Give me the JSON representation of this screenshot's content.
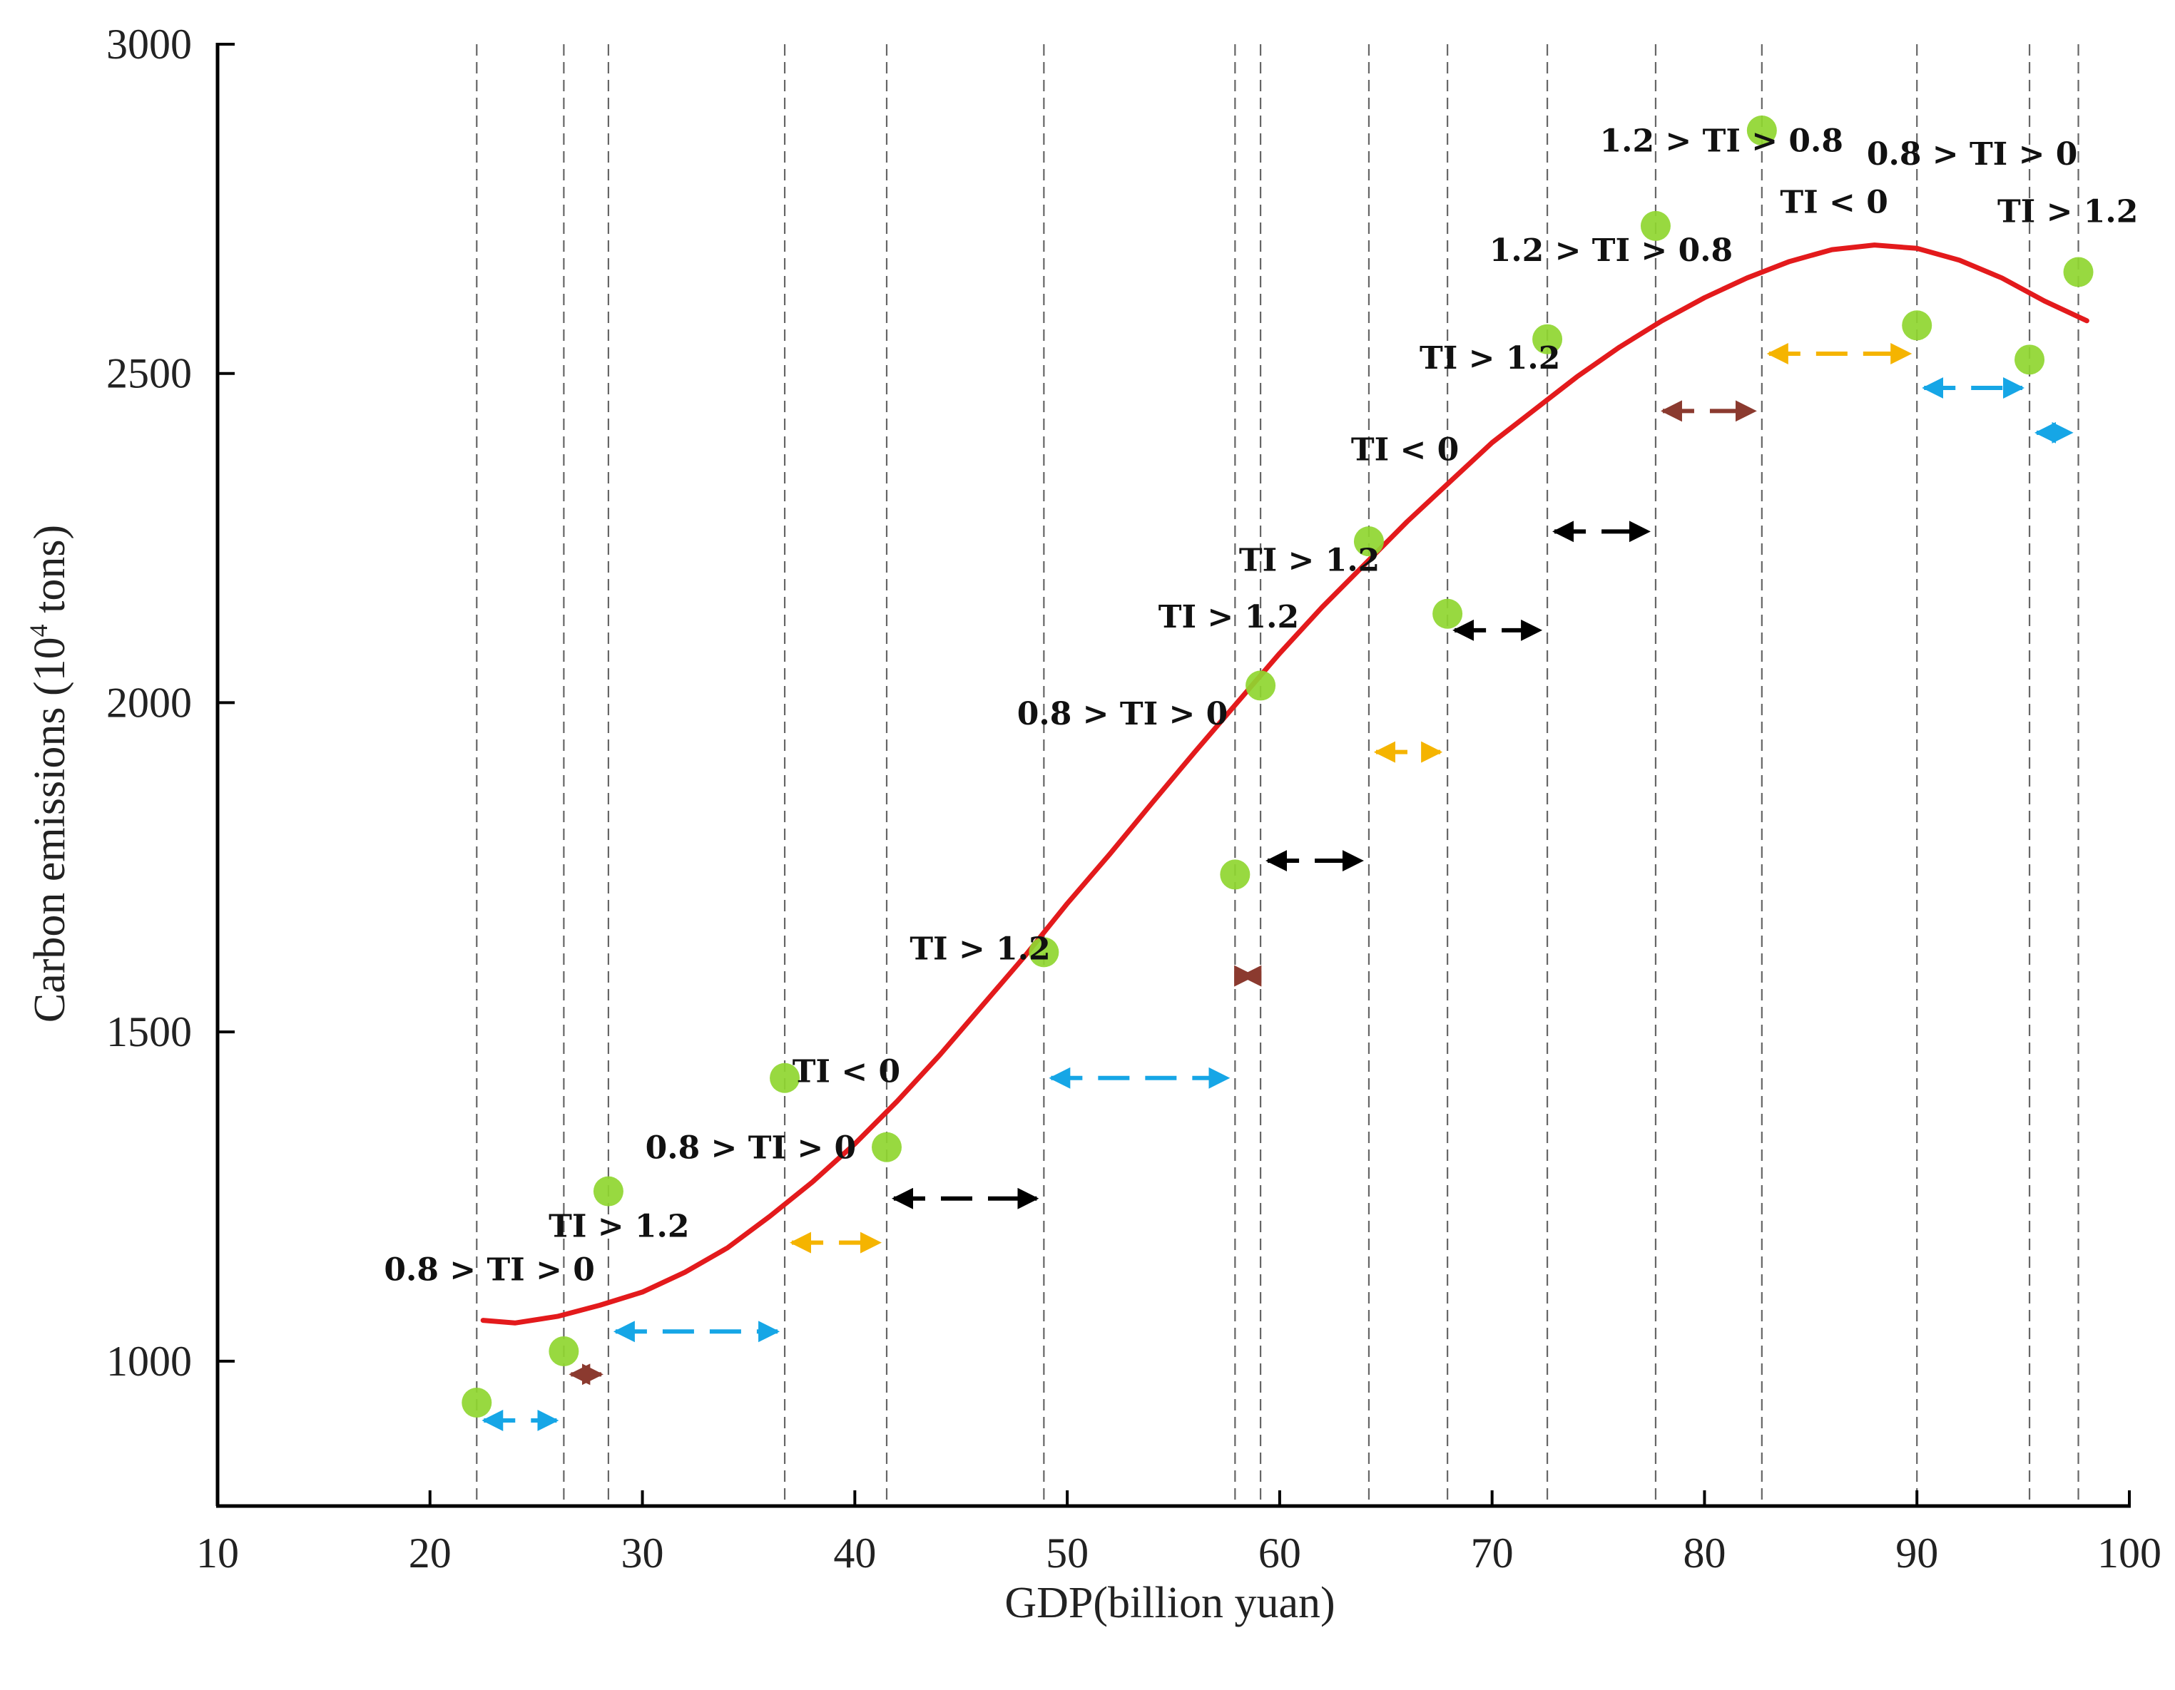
{
  "chart_data": {
    "type": "scatter",
    "title": "",
    "xlabel": "GDP(billion yuan)",
    "ylabel": "Carbon emissions (10",
    "ylabel_sup": "4",
    "ylabel_tail": " tons)",
    "xlim": [
      10,
      100
    ],
    "ylim": [
      780,
      3000
    ],
    "xticks": [
      10,
      20,
      30,
      40,
      50,
      60,
      70,
      80,
      90,
      100
    ],
    "xtick_labels": [
      "10",
      "20",
      "30",
      "40",
      "50",
      "60",
      "70",
      "80",
      "90",
      "100"
    ],
    "yticks": [
      1000,
      1500,
      2000,
      2500,
      3000
    ],
    "ytick_labels": [
      "1000",
      "1500",
      "2000",
      "2500",
      "3000"
    ],
    "colors": {
      "axis": "#000000",
      "curve": "#e31a1c",
      "point": "#8fd630",
      "guide": "#666666",
      "blue": "#16a6e6",
      "orange": "#f5b400",
      "black": "#000000",
      "brown": "#8b3a2f"
    },
    "points": [
      {
        "x": 22.2,
        "y": 937
      },
      {
        "x": 26.3,
        "y": 1015
      },
      {
        "x": 28.4,
        "y": 1258
      },
      {
        "x": 36.7,
        "y": 1430
      },
      {
        "x": 41.5,
        "y": 1325
      },
      {
        "x": 48.9,
        "y": 1621
      },
      {
        "x": 57.9,
        "y": 1739
      },
      {
        "x": 59.1,
        "y": 2026
      },
      {
        "x": 64.2,
        "y": 2245
      },
      {
        "x": 67.9,
        "y": 2135
      },
      {
        "x": 72.6,
        "y": 2552
      },
      {
        "x": 77.7,
        "y": 2724
      },
      {
        "x": 82.7,
        "y": 2869
      },
      {
        "x": 90.0,
        "y": 2573
      },
      {
        "x": 95.3,
        "y": 2521
      },
      {
        "x": 97.6,
        "y": 2654
      }
    ],
    "fitted_curve": {
      "name": "fitted curve",
      "x": [
        22.5,
        24,
        26,
        28,
        30,
        32,
        34,
        36,
        38,
        40,
        42,
        44,
        46,
        48,
        50,
        52,
        54,
        56,
        58,
        60,
        62,
        64,
        66,
        68,
        70,
        72,
        74,
        76,
        78,
        80,
        82,
        84,
        86,
        88,
        90,
        92,
        94,
        96,
        98
      ],
      "y": [
        1062,
        1058,
        1068,
        1085,
        1105,
        1135,
        1172,
        1220,
        1272,
        1330,
        1395,
        1465,
        1540,
        1615,
        1695,
        1770,
        1848,
        1925,
        2000,
        2075,
        2145,
        2210,
        2275,
        2335,
        2395,
        2445,
        2495,
        2540,
        2580,
        2615,
        2645,
        2670,
        2688,
        2695,
        2690,
        2672,
        2645,
        2610,
        2580
      ]
    },
    "guide_lines_x": [
      22.2,
      26.3,
      28.4,
      36.7,
      41.5,
      48.9,
      57.9,
      59.1,
      64.2,
      67.9,
      72.6,
      77.7,
      82.7,
      90.0,
      95.3,
      97.6
    ],
    "intervals": [
      {
        "x1": 22.2,
        "x2": 26.3,
        "y": 910,
        "color": "blue",
        "style": "dashed"
      },
      {
        "x1": 26.3,
        "x2": 28.4,
        "y": 980,
        "color": "brown",
        "style": "solid"
      },
      {
        "x1": 28.4,
        "x2": 36.7,
        "y": 1045,
        "color": "blue",
        "style": "dashed"
      },
      {
        "x1": 36.7,
        "x2": 41.5,
        "y": 1180,
        "color": "orange",
        "style": "dashed"
      },
      {
        "x1": 41.5,
        "x2": 48.9,
        "y": 1247,
        "color": "black",
        "style": "dashed"
      },
      {
        "x1": 48.9,
        "x2": 57.9,
        "y": 1430,
        "color": "blue",
        "style": "dashed"
      },
      {
        "x1": 57.9,
        "x2": 59.1,
        "y": 1585,
        "color": "brown",
        "style": "solid"
      },
      {
        "x1": 59.1,
        "x2": 64.2,
        "y": 1760,
        "color": "black",
        "style": "dashed"
      },
      {
        "x1": 64.2,
        "x2": 67.9,
        "y": 1925,
        "color": "orange",
        "style": "dashed"
      },
      {
        "x1": 67.9,
        "x2": 72.6,
        "y": 2110,
        "color": "black",
        "style": "dashed"
      },
      {
        "x1": 72.6,
        "x2": 77.7,
        "y": 2260,
        "color": "black",
        "style": "dashed"
      },
      {
        "x1": 77.7,
        "x2": 82.7,
        "y": 2443,
        "color": "brown",
        "style": "dashed"
      },
      {
        "x1": 82.7,
        "x2": 90.0,
        "y": 2530,
        "color": "orange",
        "style": "dashed"
      },
      {
        "x1": 90.0,
        "x2": 95.3,
        "y": 2478,
        "color": "blue",
        "style": "dashed"
      },
      {
        "x1": 95.3,
        "x2": 97.6,
        "y": 2410,
        "color": "blue",
        "style": "dashed"
      }
    ],
    "annotations": [
      {
        "text": "0.8 > TI > 0",
        "x": 22.8,
        "y": 1123
      },
      {
        "text": "TI > 1.2",
        "x": 28.9,
        "y": 1189
      },
      {
        "text": "0.8 > TI > 0",
        "x": 35.1,
        "y": 1308
      },
      {
        "text": "TI < 0",
        "x": 39.6,
        "y": 1424
      },
      {
        "text": "TI > 1.2",
        "x": 45.9,
        "y": 1610
      },
      {
        "text": "0.8 > TI > 0",
        "x": 52.6,
        "y": 1967
      },
      {
        "text": "TI > 1.2",
        "x": 57.6,
        "y": 2114
      },
      {
        "text": "TI > 1.2",
        "x": 61.4,
        "y": 2200
      },
      {
        "text": "TI < 0",
        "x": 65.9,
        "y": 2368
      },
      {
        "text": "TI > 1.2",
        "x": 69.9,
        "y": 2507
      },
      {
        "text": "1.2 > TI > 0.8",
        "x": 75.6,
        "y": 2671
      },
      {
        "text": "1.2 > TI > 0.8",
        "x": 80.8,
        "y": 2837
      },
      {
        "text": "TI < 0",
        "x": 86.1,
        "y": 2744
      },
      {
        "text": "0.8 > TI > 0",
        "x": 92.6,
        "y": 2817
      },
      {
        "text": "TI > 1.2",
        "x": 97.1,
        "y": 2730
      }
    ]
  }
}
